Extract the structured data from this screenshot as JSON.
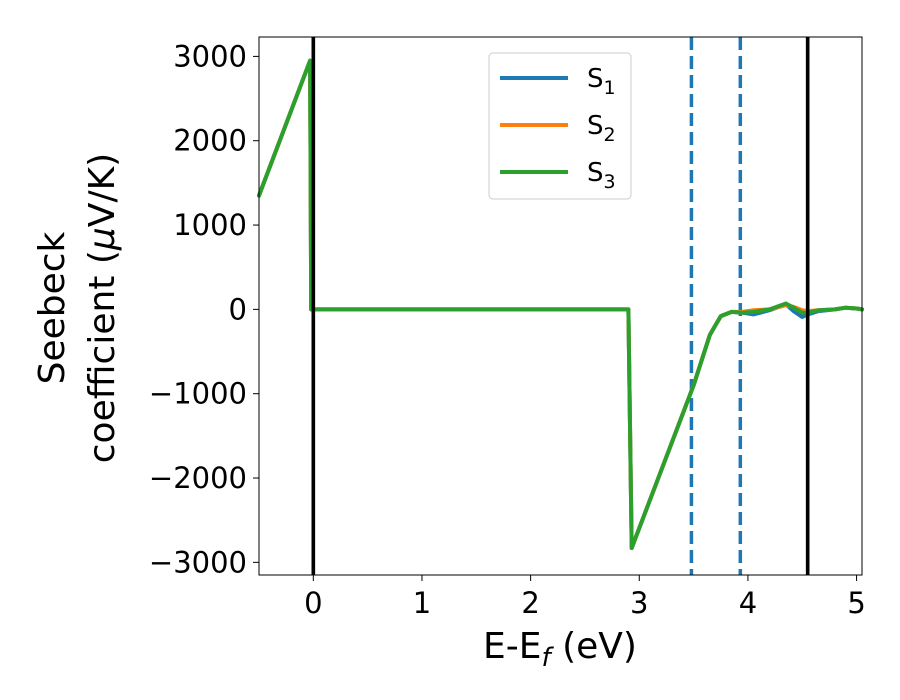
{
  "chart_data": {
    "type": "line",
    "xlabel": "E-E",
    "xlabel_sub": "f",
    "xlabel_unit": " (eV)",
    "ylabel_line1": "Seebeck",
    "ylabel_line2": "coefficient  (",
    "ylabel_mu": "μ",
    "ylabel_unit": "V/K)",
    "xlim": [
      -0.5,
      5.05
    ],
    "ylim": [
      -3150,
      3230
    ],
    "x_ticks": [
      {
        "value": 0,
        "label": "0"
      },
      {
        "value": 1,
        "label": "1"
      },
      {
        "value": 2,
        "label": "2"
      },
      {
        "value": 3,
        "label": "3"
      },
      {
        "value": 4,
        "label": "4"
      },
      {
        "value": 5,
        "label": "5"
      }
    ],
    "y_ticks": [
      {
        "value": 3000,
        "label": "3000"
      },
      {
        "value": 2000,
        "label": "2000"
      },
      {
        "value": 1000,
        "label": "1000"
      },
      {
        "value": 0,
        "label": "0"
      },
      {
        "value": -1000,
        "label": "−1000"
      },
      {
        "value": -2000,
        "label": "−2000"
      },
      {
        "value": -3000,
        "label": "−3000"
      }
    ],
    "legend_position": "top-center",
    "grid": false,
    "series": [
      {
        "name": "S",
        "sub": "1",
        "color": "#1f77b4",
        "x": [
          -0.5,
          -0.03,
          -0.02,
          2.9,
          2.9,
          2.93,
          3.5,
          3.65,
          3.75,
          3.85,
          3.95,
          4.05,
          4.2,
          4.35,
          4.42,
          4.5,
          4.55,
          4.65,
          4.8,
          4.9,
          5.0,
          5.05
        ],
        "y": [
          1350,
          2950,
          0,
          0,
          0,
          -2830,
          -900,
          -300,
          -80,
          -30,
          -40,
          -60,
          -10,
          60,
          -20,
          -90,
          -60,
          -20,
          0,
          20,
          10,
          0
        ]
      },
      {
        "name": "S",
        "sub": "2",
        "color": "#ff7f0e",
        "x": [
          -0.5,
          -0.03,
          -0.02,
          2.9,
          2.9,
          2.93,
          3.5,
          3.65,
          3.75,
          3.85,
          3.95,
          4.05,
          4.2,
          4.35,
          4.42,
          4.5,
          4.55,
          4.65,
          4.8,
          4.9,
          5.0,
          5.05
        ],
        "y": [
          1350,
          2950,
          0,
          0,
          0,
          -2830,
          -900,
          -300,
          -80,
          -30,
          -30,
          -10,
          0,
          50,
          30,
          -10,
          -20,
          -10,
          0,
          20,
          10,
          0
        ]
      },
      {
        "name": "S",
        "sub": "3",
        "color": "#2ca02c",
        "x": [
          -0.5,
          -0.03,
          -0.02,
          2.9,
          2.9,
          2.93,
          3.5,
          3.65,
          3.75,
          3.85,
          3.95,
          4.05,
          4.2,
          4.35,
          4.42,
          4.5,
          4.55,
          4.65,
          4.8,
          4.9,
          5.0,
          5.05
        ],
        "y": [
          1350,
          2950,
          0,
          0,
          0,
          -2830,
          -900,
          -300,
          -80,
          -30,
          -40,
          -30,
          0,
          70,
          20,
          -40,
          -40,
          -10,
          0,
          20,
          10,
          0
        ]
      }
    ],
    "vertical_lines": [
      {
        "x": 0.0,
        "color": "#000000",
        "style": "solid"
      },
      {
        "x": 4.55,
        "color": "#000000",
        "style": "solid"
      },
      {
        "x": 3.48,
        "color": "#1f77b4",
        "style": "dashed"
      },
      {
        "x": 3.93,
        "color": "#1f77b4",
        "style": "dashed"
      }
    ]
  }
}
